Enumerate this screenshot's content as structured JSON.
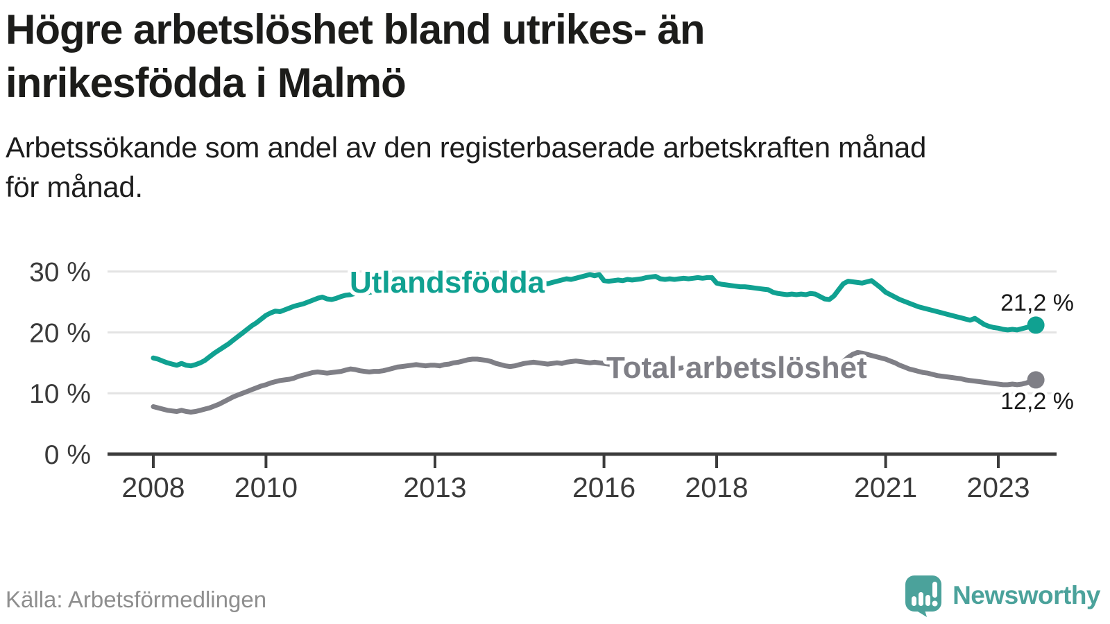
{
  "header": {
    "title_lines": [
      "Högre arbetslöshet bland utrikes- än",
      "inrikesfödda i Malmö"
    ],
    "subtitle_lines": [
      "Arbetssökande som andel av den registerbaserade arbetskraften månad",
      "för månad."
    ]
  },
  "footer": {
    "source": "Källa: Arbetsförmedlingen",
    "brand": "Newsworthy",
    "logo_icon": "speech-bubble-bar-chart-exclamation-icon"
  },
  "colors": {
    "foreign_born_line": "#10a191",
    "total_line": "#7f7f86",
    "axis": "#3c3c3c",
    "gridline": "#e3e3e3",
    "value_label": "#1a1a1a",
    "brand_teal": "#4ba29b"
  },
  "chart_data": {
    "type": "line",
    "title": "Högre arbetslöshet bland utrikes- än inrikesfödda i Malmö",
    "subtitle": "Arbetssökande som andel av den registerbaserade arbetskraften månad för månad.",
    "x_unit": "month",
    "x_start": "2008-01",
    "x_end": "2023-09",
    "x_tick_years": [
      2008,
      2010,
      2013,
      2016,
      2018,
      2021,
      2023
    ],
    "y_ticks": [
      0,
      10,
      20,
      30
    ],
    "y_tick_suffix": " %",
    "ylim": [
      0,
      32
    ],
    "grid": "horizontal",
    "legend_position": "inline-labels",
    "series": [
      {
        "name": "Utlandsfödda",
        "color": "#10a191",
        "end_label": "21,2 %",
        "end_value": 21.2,
        "values": [
          15.8,
          15.6,
          15.3,
          15.0,
          14.8,
          14.6,
          14.9,
          14.6,
          14.5,
          14.7,
          15.0,
          15.4,
          16.0,
          16.6,
          17.1,
          17.6,
          18.1,
          18.7,
          19.3,
          19.9,
          20.5,
          21.1,
          21.6,
          22.2,
          22.8,
          23.2,
          23.5,
          23.4,
          23.7,
          24.0,
          24.3,
          24.5,
          24.7,
          25.0,
          25.3,
          25.6,
          25.8,
          25.5,
          25.4,
          25.6,
          25.9,
          26.1,
          26.2,
          26.4,
          26.5,
          26.4,
          26.6,
          26.7,
          26.5,
          26.7,
          26.8,
          26.9,
          27.0,
          27.1,
          27.0,
          27.2,
          27.1,
          27.3,
          27.2,
          27.4,
          27.2,
          27.3,
          27.4,
          27.3,
          27.5,
          27.4,
          27.6,
          27.5,
          27.6,
          27.5,
          27.7,
          27.6,
          27.5,
          27.6,
          27.7,
          27.6,
          27.8,
          27.7,
          27.9,
          27.8,
          28.0,
          27.9,
          28.0,
          28.1,
          28.0,
          28.2,
          28.4,
          28.6,
          28.8,
          28.7,
          28.9,
          29.1,
          29.3,
          29.5,
          29.3,
          29.5,
          28.5,
          28.4,
          28.5,
          28.6,
          28.5,
          28.7,
          28.6,
          28.7,
          28.8,
          29.0,
          29.1,
          29.2,
          28.8,
          28.7,
          28.8,
          28.7,
          28.8,
          28.9,
          28.8,
          28.9,
          29.0,
          28.9,
          29.0,
          29.0,
          28.1,
          27.9,
          27.8,
          27.7,
          27.6,
          27.5,
          27.5,
          27.4,
          27.3,
          27.2,
          27.1,
          27.0,
          26.6,
          26.4,
          26.3,
          26.2,
          26.3,
          26.2,
          26.3,
          26.2,
          26.4,
          26.3,
          25.9,
          25.5,
          25.4,
          26.0,
          27.0,
          28.0,
          28.4,
          28.3,
          28.2,
          28.1,
          28.3,
          28.5,
          27.9,
          27.3,
          26.6,
          26.2,
          25.8,
          25.4,
          25.1,
          24.8,
          24.5,
          24.2,
          24.0,
          23.8,
          23.6,
          23.4,
          23.2,
          23.0,
          22.8,
          22.6,
          22.4,
          22.2,
          22.0,
          22.3,
          21.8,
          21.3,
          21.0,
          20.8,
          20.7,
          20.5,
          20.4,
          20.5,
          20.4,
          20.6,
          20.8,
          21.0,
          21.2
        ]
      },
      {
        "name": "Total arbetslöshet",
        "color": "#7f7f86",
        "end_label": "12,2 %",
        "end_value": 12.2,
        "values": [
          7.8,
          7.6,
          7.4,
          7.2,
          7.1,
          7.0,
          7.2,
          7.0,
          6.9,
          7.0,
          7.2,
          7.4,
          7.6,
          7.9,
          8.2,
          8.6,
          9.0,
          9.4,
          9.7,
          10.0,
          10.3,
          10.6,
          10.9,
          11.2,
          11.4,
          11.7,
          11.9,
          12.1,
          12.2,
          12.3,
          12.5,
          12.8,
          13.0,
          13.2,
          13.4,
          13.5,
          13.4,
          13.3,
          13.4,
          13.5,
          13.6,
          13.8,
          14.0,
          13.9,
          13.7,
          13.6,
          13.5,
          13.6,
          13.6,
          13.7,
          13.9,
          14.1,
          14.3,
          14.4,
          14.5,
          14.6,
          14.7,
          14.6,
          14.5,
          14.6,
          14.6,
          14.5,
          14.7,
          14.8,
          15.0,
          15.1,
          15.3,
          15.5,
          15.6,
          15.6,
          15.5,
          15.4,
          15.2,
          14.9,
          14.7,
          14.5,
          14.4,
          14.5,
          14.7,
          14.9,
          15.0,
          15.1,
          15.0,
          14.9,
          14.8,
          14.9,
          15.0,
          14.9,
          15.1,
          15.2,
          15.3,
          15.2,
          15.1,
          15.0,
          15.1,
          15.0,
          14.9,
          14.8,
          14.7,
          14.6,
          14.7,
          14.6,
          14.5,
          14.6,
          14.5,
          14.6,
          14.5,
          14.4,
          14.3,
          14.2,
          14.3,
          14.2,
          14.1,
          14.2,
          14.1,
          14.0,
          14.1,
          14.0,
          14.1,
          14.0,
          13.9,
          13.8,
          13.7,
          13.8,
          13.7,
          13.6,
          13.7,
          13.6,
          13.5,
          13.6,
          13.5,
          13.4,
          13.5,
          13.4,
          13.3,
          13.2,
          13.3,
          13.2,
          13.3,
          13.2,
          13.4,
          13.3,
          13.2,
          13.1,
          13.4,
          13.8,
          14.4,
          15.2,
          15.9,
          16.4,
          16.7,
          16.6,
          16.4,
          16.2,
          16.0,
          15.8,
          15.6,
          15.3,
          15.0,
          14.6,
          14.3,
          14.0,
          13.8,
          13.6,
          13.4,
          13.3,
          13.1,
          12.9,
          12.8,
          12.7,
          12.6,
          12.5,
          12.4,
          12.2,
          12.1,
          12.0,
          11.9,
          11.8,
          11.7,
          11.6,
          11.5,
          11.4,
          11.4,
          11.5,
          11.4,
          11.5,
          11.7,
          12.0,
          12.2
        ]
      }
    ]
  }
}
